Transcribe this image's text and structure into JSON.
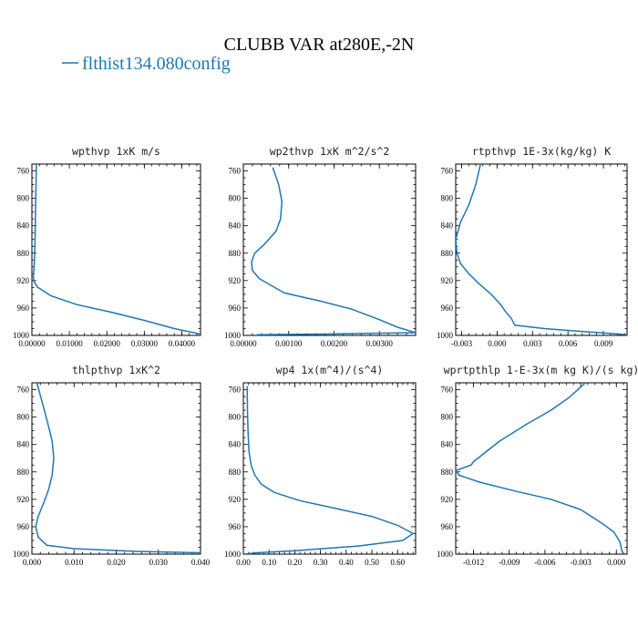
{
  "figure": {
    "title": "CLUBB VAR at280E,-2N",
    "legend": "flthist134.080config",
    "line_color": "#1f77b4"
  },
  "chart_data": [
    {
      "type": "line",
      "title": "wpthvp  1xK m/s",
      "xlim": [
        0.0,
        0.045
      ],
      "ylim": [
        1000,
        750
      ],
      "xticks": [
        0.0,
        0.01,
        0.02,
        0.03,
        0.04
      ],
      "xtick_labels": [
        "0.00000",
        "0.01000",
        "0.02000",
        "0.03000",
        "0.04000"
      ],
      "yticks": [
        760,
        800,
        840,
        880,
        920,
        960,
        1000
      ],
      "ytick_labels": [
        "760",
        "800",
        "840",
        "880",
        "920",
        "960",
        "1000"
      ],
      "series": [
        {
          "x": [
            0.0012,
            0.0011,
            0.001,
            0.0009,
            0.0008,
            0.0006,
            0.0004,
            0.0006,
            0.0016,
            0.005,
            0.012,
            0.021,
            0.03,
            0.038,
            0.045
          ],
          "y": [
            750,
            780,
            810,
            840,
            870,
            900,
            915,
            922,
            930,
            942,
            955,
            966,
            978,
            990,
            998
          ]
        }
      ]
    },
    {
      "type": "line",
      "title": "wp2thvp  1xK m^2/s^2",
      "xlim": [
        0.0,
        0.0038
      ],
      "ylim": [
        1000,
        750
      ],
      "xticks": [
        0.0,
        0.001,
        0.002,
        0.003
      ],
      "xtick_labels": [
        "0.00000",
        "0.00100",
        "0.00200",
        "0.00300"
      ],
      "yticks": [
        760,
        800,
        840,
        880,
        920,
        960,
        1000
      ],
      "ytick_labels": [
        "760",
        "800",
        "840",
        "880",
        "920",
        "960",
        "1000"
      ],
      "series": [
        {
          "x": [
            0.00065,
            0.00078,
            0.00085,
            0.00082,
            0.00072,
            0.00045,
            0.00025,
            0.00018,
            0.0002,
            0.00035,
            0.0009,
            0.0017,
            0.0024,
            0.003,
            0.0034,
            0.0038,
            0.0018,
            0.0003
          ],
          "y": [
            755,
            780,
            805,
            830,
            848,
            868,
            880,
            893,
            905,
            917,
            938,
            950,
            962,
            977,
            988,
            996,
            998,
            999
          ]
        }
      ]
    },
    {
      "type": "line",
      "title": "rtpthvp  1E-3x(kg/kg) K",
      "xlim": [
        -0.0035,
        0.011
      ],
      "ylim": [
        1000,
        750
      ],
      "xticks": [
        -0.003,
        0.0,
        0.003,
        0.006,
        0.009
      ],
      "xtick_labels": [
        "-0.003",
        "0.000",
        "0.003",
        "0.006",
        "0.009"
      ],
      "yticks": [
        760,
        800,
        840,
        880,
        920,
        960,
        1000
      ],
      "ytick_labels": [
        "760",
        "800",
        "840",
        "880",
        "920",
        "960",
        "1000"
      ],
      "series": [
        {
          "x": [
            -0.0014,
            -0.0018,
            -0.0024,
            -0.0031,
            -0.0035,
            -0.0034,
            -0.0031,
            -0.0024,
            -0.0015,
            -0.0005,
            0.0003,
            0.0007,
            0.0012,
            0.0015,
            0.004,
            0.007,
            0.0095,
            0.011
          ],
          "y": [
            750,
            780,
            810,
            835,
            860,
            880,
            895,
            910,
            925,
            940,
            955,
            965,
            975,
            985,
            990,
            994,
            997,
            999
          ]
        }
      ]
    },
    {
      "type": "line",
      "title": "thlpthvp  1xK^2",
      "xlim": [
        0.0,
        0.04
      ],
      "ylim": [
        1000,
        750
      ],
      "xticks": [
        0.0,
        0.01,
        0.02,
        0.03,
        0.04
      ],
      "xtick_labels": [
        "0.000",
        "0.010",
        "0.020",
        "0.030",
        "0.040"
      ],
      "yticks": [
        760,
        800,
        840,
        880,
        920,
        960,
        1000
      ],
      "ytick_labels": [
        "760",
        "800",
        "840",
        "880",
        "920",
        "960",
        "1000"
      ],
      "series": [
        {
          "x": [
            0.0012,
            0.0025,
            0.0038,
            0.0048,
            0.0052,
            0.0048,
            0.004,
            0.0028,
            0.0015,
            0.0009,
            0.0015,
            0.0035,
            0.01,
            0.025,
            0.04
          ],
          "y": [
            750,
            780,
            810,
            835,
            860,
            885,
            905,
            925,
            945,
            960,
            975,
            987,
            992,
            996,
            998
          ]
        }
      ]
    },
    {
      "type": "line",
      "title": "wp4  1x(m^4)/(s^4)",
      "xlim": [
        0.0,
        0.67
      ],
      "ylim": [
        1000,
        750
      ],
      "xticks": [
        0.0,
        0.1,
        0.2,
        0.3,
        0.4,
        0.5,
        0.6
      ],
      "xtick_labels": [
        "0.00",
        "0.10",
        "0.20",
        "0.30",
        "0.40",
        "0.50",
        "0.60"
      ],
      "yticks": [
        760,
        800,
        840,
        880,
        920,
        960,
        1000
      ],
      "ytick_labels": [
        "760",
        "800",
        "840",
        "880",
        "920",
        "960",
        "1000"
      ],
      "series": [
        {
          "x": [
            0.015,
            0.016,
            0.018,
            0.022,
            0.03,
            0.045,
            0.07,
            0.12,
            0.22,
            0.38,
            0.5,
            0.6,
            0.66,
            0.62,
            0.45,
            0.2,
            0.05,
            0.005
          ],
          "y": [
            755,
            790,
            820,
            850,
            870,
            885,
            898,
            910,
            922,
            935,
            945,
            958,
            970,
            980,
            988,
            995,
            998,
            1000
          ]
        }
      ]
    },
    {
      "type": "line",
      "title": "wprtpthlp  1-E-3x(m kg K)/(s kg)",
      "xlim": [
        -0.0135,
        0.0009
      ],
      "ylim": [
        1000,
        750
      ],
      "xticks": [
        -0.012,
        -0.009,
        -0.006,
        -0.003,
        0.0
      ],
      "xtick_labels": [
        "-0.012",
        "-0.009",
        "-0.006",
        "-0.003",
        "0.000"
      ],
      "yticks": [
        760,
        800,
        840,
        880,
        920,
        960,
        1000
      ],
      "ytick_labels": [
        "760",
        "800",
        "840",
        "880",
        "920",
        "960",
        "1000"
      ],
      "series": [
        {
          "x": [
            -0.0026,
            -0.004,
            -0.0055,
            -0.0075,
            -0.0098,
            -0.012,
            -0.0122,
            -0.0135,
            -0.0132,
            -0.0115,
            -0.0085,
            -0.0055,
            -0.003,
            -0.0012,
            -0.0002,
            0.0003,
            0.0005
          ],
          "y": [
            750,
            772,
            790,
            810,
            835,
            865,
            870,
            878,
            885,
            895,
            908,
            920,
            935,
            955,
            968,
            982,
            998
          ]
        }
      ]
    }
  ]
}
